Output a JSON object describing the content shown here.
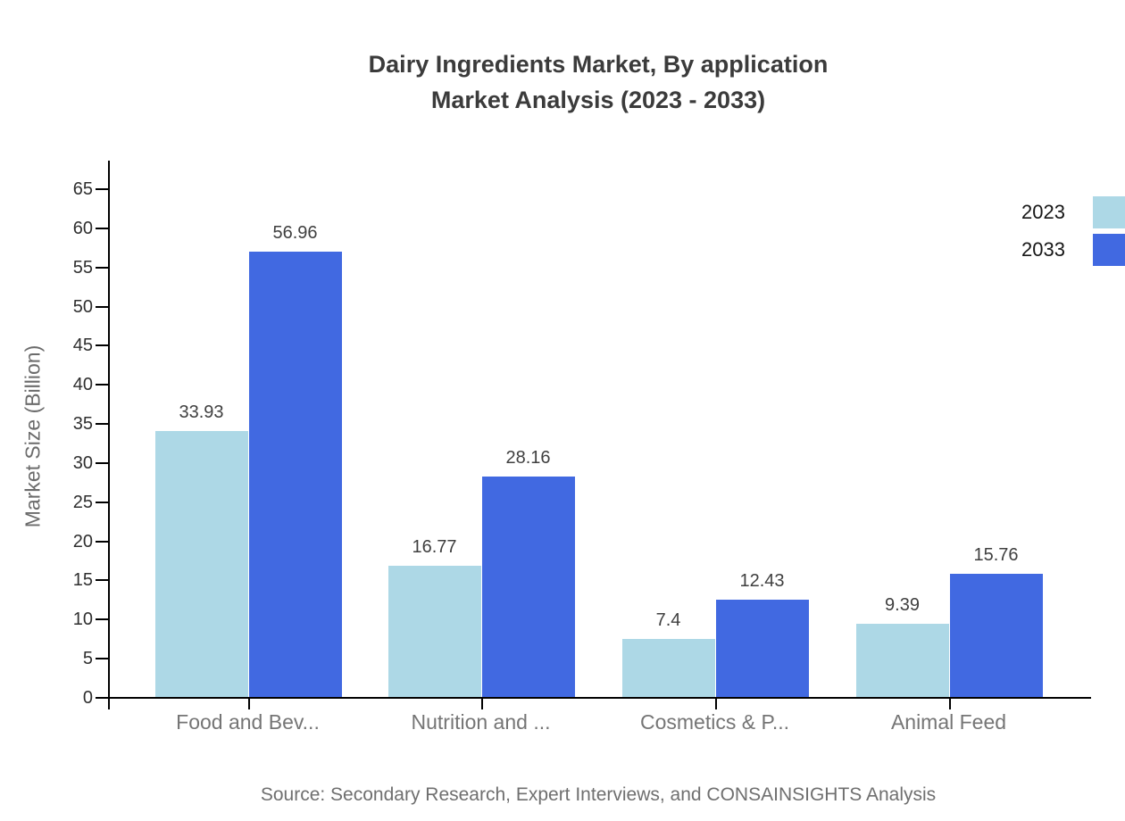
{
  "title": {
    "line1": "Dairy Ingredients Market, By application",
    "line2": "Market Analysis (2023 - 2033)"
  },
  "ylabel": "Market Size (Billion)",
  "source": "Source: Secondary Research, Expert Interviews, and CONSAINSIGHTS Analysis",
  "legend": {
    "items": [
      {
        "label": "2023",
        "color": "#ADD8E6"
      },
      {
        "label": "2033",
        "color": "#4169E1"
      }
    ]
  },
  "colors": {
    "series_2023": "#ADD8E6",
    "series_2033": "#4169E1",
    "axis": "#000000",
    "title_text": "#3b3b3b",
    "category_text": "#757575",
    "value_text": "#3f3f3f",
    "source_text": "#6f6f6f"
  },
  "chart_data": {
    "type": "bar",
    "title": "Dairy Ingredients Market, By application Market Analysis (2023 - 2033)",
    "categories": [
      "Food and Bev...",
      "Nutrition and ...",
      "Cosmetics & P...",
      "Animal Feed"
    ],
    "series": [
      {
        "name": "2023",
        "color": "#ADD8E6",
        "values": [
          33.93,
          16.77,
          7.4,
          9.39
        ]
      },
      {
        "name": "2033",
        "color": "#4169E1",
        "values": [
          56.96,
          28.16,
          12.43,
          15.76
        ]
      }
    ],
    "value_labels": [
      "33.93",
      "56.96",
      "16.77",
      "28.16",
      "7.4",
      "12.43",
      "9.39",
      "15.76"
    ],
    "xlabel": "",
    "ylabel": "Market Size (Billion)",
    "ylim": [
      0,
      65
    ],
    "ytick_step": 5,
    "yticks": [
      0,
      5,
      10,
      15,
      20,
      25,
      30,
      35,
      40,
      45,
      50,
      55,
      60,
      65
    ],
    "grid": false,
    "legend_position": "top-right"
  }
}
